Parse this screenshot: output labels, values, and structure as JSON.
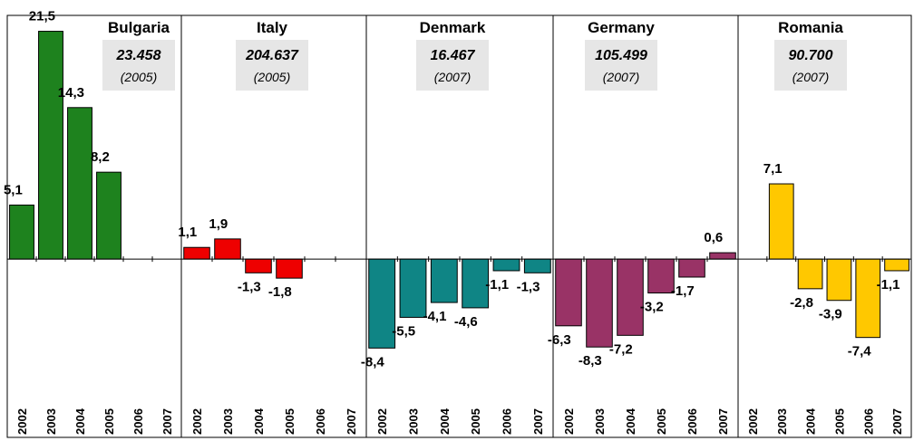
{
  "chart_data": [
    {
      "type": "bar",
      "title": "Bulgaria",
      "subtitle": "23.458",
      "note": "(2005)",
      "color": "#1e821e",
      "categories": [
        "2002",
        "2003",
        "2004",
        "2005",
        "2006",
        "2007"
      ],
      "values": [
        5.1,
        21.5,
        14.3,
        8.2,
        null,
        null
      ],
      "value_labels": [
        "5,1",
        "21,5",
        "14,3",
        "8,2",
        null,
        null
      ],
      "ylim": [
        -12.3,
        23
      ]
    },
    {
      "type": "bar",
      "title": "Italy",
      "subtitle": "204.637",
      "note": "(2005)",
      "color": "#ee0000",
      "categories": [
        "2002",
        "2003",
        "2004",
        "2005",
        "2006",
        "2007"
      ],
      "values": [
        1.1,
        1.9,
        -1.3,
        -1.8,
        null,
        null
      ],
      "value_labels": [
        "1,1",
        "1,9",
        "-1,3",
        "-1,8",
        null,
        null
      ],
      "ylim": [
        -12.3,
        23
      ]
    },
    {
      "type": "bar",
      "title": "Denmark",
      "subtitle": "16.467",
      "note": "(2007)",
      "color": "#0f8585",
      "categories": [
        "2002",
        "2003",
        "2004",
        "2005",
        "2006",
        "2007"
      ],
      "values": [
        -8.4,
        -5.5,
        -4.1,
        -4.6,
        -1.1,
        -1.3
      ],
      "value_labels": [
        "-8,4",
        "-5,5",
        "-4,1",
        "-4,6",
        "-1,1",
        "-1,3"
      ],
      "ylim": [
        -12.3,
        23
      ]
    },
    {
      "type": "bar",
      "title": "Germany",
      "subtitle": "105.499",
      "note": "(2007)",
      "color": "#993366",
      "categories": [
        "2002",
        "2003",
        "2004",
        "2005",
        "2006",
        "2007"
      ],
      "values": [
        -6.3,
        -8.3,
        -7.2,
        -3.2,
        -1.7,
        0.6
      ],
      "value_labels": [
        "-6,3",
        "-8,3",
        "-7,2",
        "-3,2",
        "-1,7",
        "0,6"
      ],
      "ylim": [
        -12.3,
        23
      ]
    },
    {
      "type": "bar",
      "title": "Romania",
      "subtitle": "90.700",
      "note": "(2007)",
      "color": "#ffc800",
      "categories": [
        "2002",
        "2003",
        "2004",
        "2005",
        "2006",
        "2007"
      ],
      "values": [
        null,
        7.1,
        -2.8,
        -3.9,
        -7.4,
        -1.1
      ],
      "value_labels": [
        null,
        "7,1",
        "-2,8",
        "-3,9",
        "-7,4",
        "-1,1"
      ],
      "ylim": [
        -12.3,
        23
      ]
    }
  ]
}
